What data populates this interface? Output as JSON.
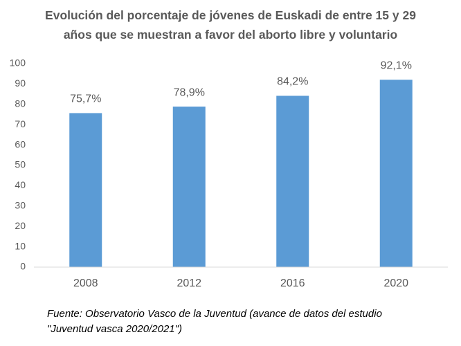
{
  "chart_data": {
    "type": "bar",
    "title": "Evolución del porcentaje de jóvenes de Euskadi de entre 15 y 29 años que se muestran a favor del aborto libre y voluntario",
    "categories": [
      "2008",
      "2012",
      "2016",
      "2020"
    ],
    "values": [
      75.7,
      78.9,
      84.2,
      92.1
    ],
    "value_labels": [
      "75,7%",
      "78,9%",
      "84,2%",
      "92,1%"
    ],
    "color": "#5b9bd5",
    "ylim": [
      0,
      100
    ],
    "yticks": [
      0,
      10,
      20,
      30,
      40,
      50,
      60,
      70,
      80,
      90,
      100
    ],
    "grid": false,
    "source": "Fuente: Observatorio Vasco de la Juventud (avance de datos del estudio \"Juventud vasca 2020/2021\")"
  }
}
